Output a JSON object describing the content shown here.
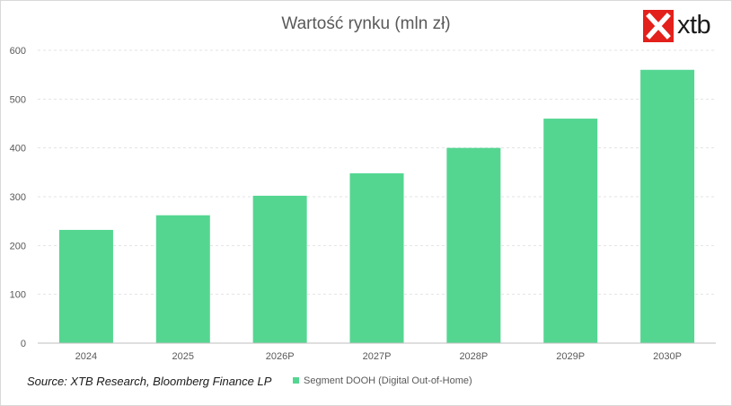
{
  "chart_data": {
    "type": "bar",
    "title": "Wartość rynku (mln zł)",
    "categories": [
      "2024",
      "2025",
      "2026P",
      "2027P",
      "2028P",
      "2029P",
      "2030P"
    ],
    "series": [
      {
        "name": "Segment DOOH (Digital Out-of-Home)",
        "values": [
          232,
          262,
          302,
          348,
          400,
          460,
          560
        ],
        "color": "#54d691"
      }
    ],
    "xlabel": "",
    "ylabel": "",
    "ylim": [
      0,
      600
    ],
    "yticks": [
      "0",
      "100",
      "200",
      "300",
      "400",
      "500",
      "600"
    ],
    "grid": true,
    "legend_position": "bottom"
  },
  "source": "Source: XTB Research, Bloomberg Finance LP",
  "logo": {
    "text": "xtb",
    "icon": "x-mark-icon",
    "brand_color": "#e3201b"
  }
}
